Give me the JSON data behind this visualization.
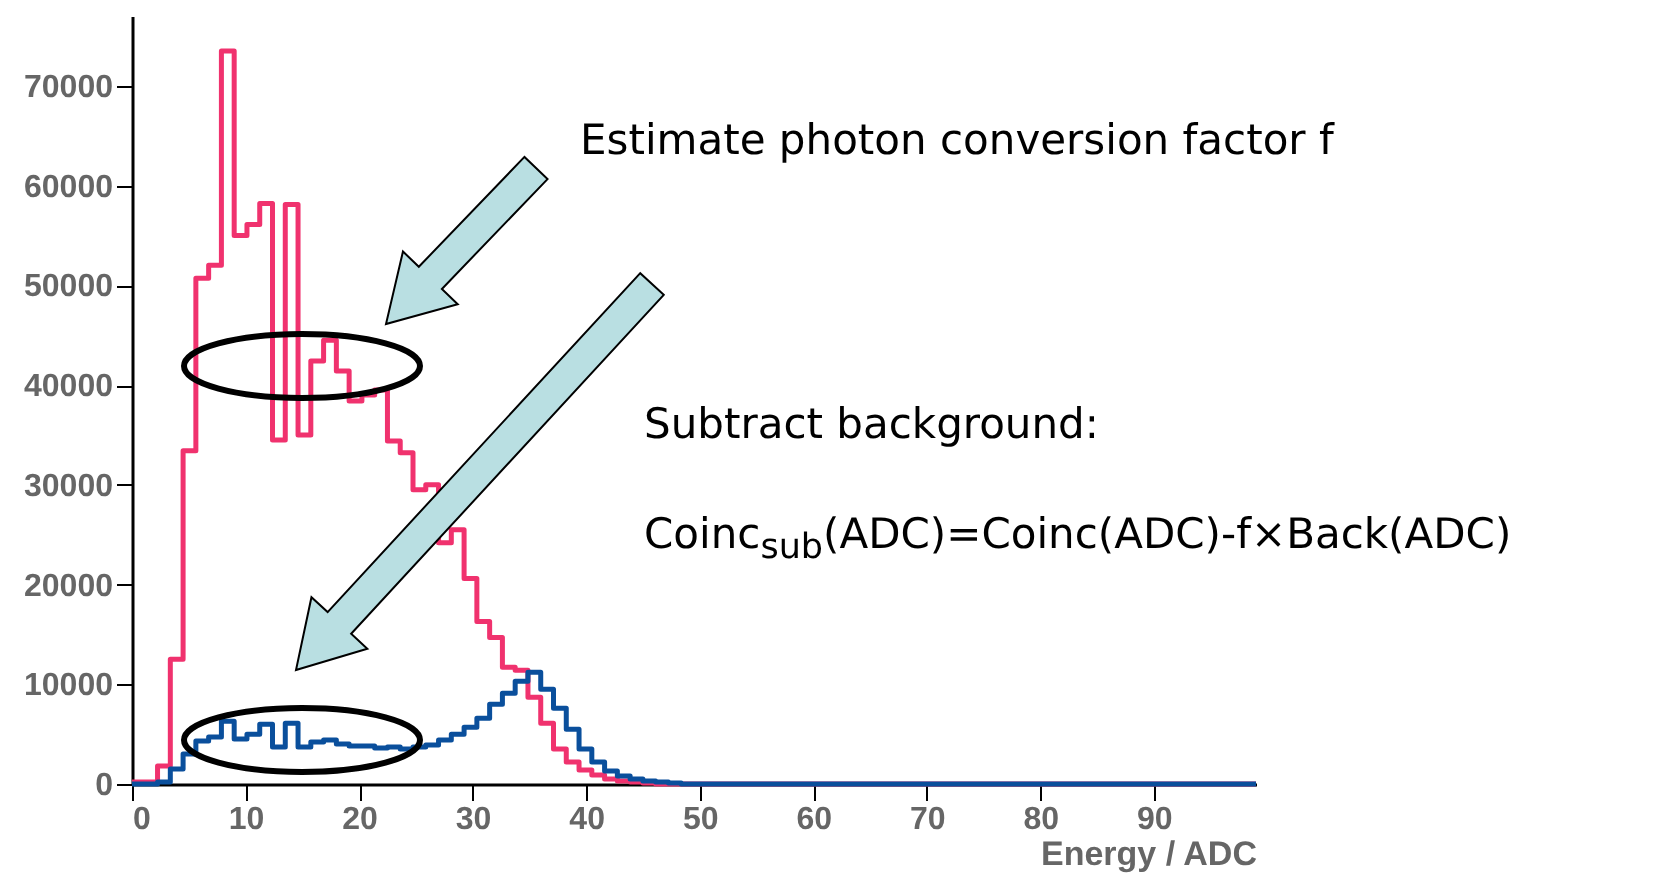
{
  "chart_data": {
    "type": "histogram",
    "xlabel": "Energy / ADC",
    "bins": [
      0,
      1.125,
      2.25,
      3.375,
      4.5,
      5.625,
      6.75,
      7.875,
      9,
      10.125,
      11.25,
      12.375,
      13.5,
      14.625,
      15.75,
      16.875,
      18,
      19.125,
      20.25,
      21.375,
      22.5,
      23.625,
      24.75,
      25.875,
      27,
      28.125,
      29.25,
      30.375,
      31.5,
      32.625,
      33.75,
      34.875,
      36,
      37.125,
      38.25,
      39.375,
      40.5,
      41.625,
      42.75,
      43.875,
      45,
      46.125,
      47.25,
      48.375,
      49.5,
      50.625,
      51.75,
      52.875,
      54,
      55.125,
      56.25,
      57.375,
      58.5,
      59.625,
      60.75,
      61.875,
      63,
      64.125,
      65.25,
      66.375,
      67.5,
      68.625,
      69.75,
      70.875,
      72,
      73.125,
      74.25,
      75.375,
      76.5,
      77.625,
      78.75,
      79.875,
      81,
      82.125,
      83.25,
      84.375,
      85.5,
      86.625,
      87.75,
      88.875,
      90,
      91.125,
      92.25,
      93.375,
      94.5,
      95.625,
      96.75,
      97.875,
      99
    ],
    "series": [
      {
        "color": "#f0326e",
        "values": [
          200,
          200,
          1800,
          12500,
          33400,
          50700,
          52000,
          73500,
          55000,
          56100,
          58200,
          34500,
          58100,
          35000,
          42400,
          44500,
          41400,
          38400,
          39000,
          39500,
          34400,
          33200,
          29500,
          30000,
          24200,
          25500,
          20600,
          16300,
          14700,
          11700,
          11400,
          8700,
          6100,
          3500,
          2200,
          1400,
          900,
          500,
          300,
          200,
          100,
          0,
          0,
          0,
          0,
          0,
          0,
          0,
          0,
          0,
          0,
          0,
          0,
          0,
          0,
          0,
          0,
          0,
          0,
          0,
          0,
          0,
          0,
          0,
          0,
          0,
          0,
          0,
          0,
          0,
          0,
          0,
          0,
          0,
          0,
          0,
          0,
          0,
          0,
          0,
          0,
          0,
          0,
          0,
          0,
          0,
          0,
          0
        ]
      },
      {
        "color": "#0a4f9c",
        "values": [
          0,
          0,
          200,
          1500,
          3000,
          4300,
          4700,
          6300,
          4500,
          5000,
          6000,
          3700,
          6100,
          3700,
          4200,
          4400,
          4000,
          3800,
          3800,
          3600,
          3700,
          3500,
          3700,
          3900,
          4400,
          5000,
          5700,
          6600,
          8000,
          9100,
          10300,
          11200,
          9500,
          7600,
          5500,
          3500,
          2200,
          1300,
          800,
          500,
          300,
          200,
          100,
          0,
          0,
          0,
          0,
          0,
          0,
          0,
          0,
          0,
          0,
          0,
          0,
          0,
          0,
          0,
          0,
          0,
          0,
          0,
          0,
          0,
          0,
          0,
          0,
          0,
          0,
          0,
          0,
          0,
          0,
          0,
          0,
          0,
          0,
          0,
          0,
          0,
          0,
          0,
          0,
          0,
          0,
          0,
          0,
          0
        ]
      }
    ],
    "xlim": [
      0,
      99
    ],
    "xticks": [
      0,
      10,
      20,
      30,
      40,
      50,
      60,
      70,
      80,
      90
    ],
    "ylim": [
      0,
      77000
    ],
    "yticks": [
      0,
      10000,
      20000,
      30000,
      40000,
      50000,
      60000,
      70000
    ],
    "grid": false,
    "legend": false,
    "annotations": [
      "Estimate photon conversion factor f",
      "Subtract background:",
      "Coinc$_{sub}$(ADC)=Coinc(ADC)-f×Back(ADC)"
    ]
  }
}
